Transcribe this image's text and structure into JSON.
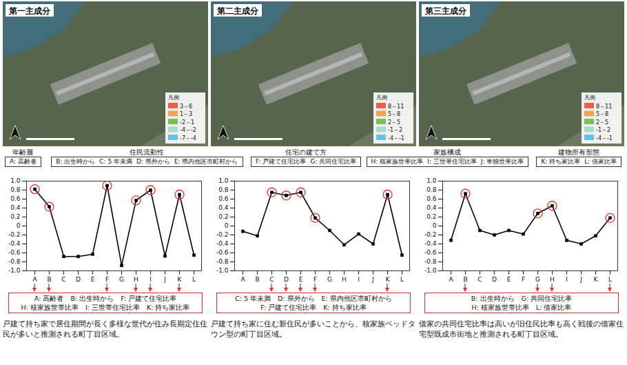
{
  "chart_data": [
    {
      "type": "line",
      "title": "第一主成分",
      "categories": [
        "A",
        "B",
        "C",
        "D",
        "E",
        "F",
        "G",
        "H",
        "I",
        "J",
        "K",
        "L"
      ],
      "values": [
        0.82,
        0.43,
        -0.68,
        -0.68,
        -0.63,
        0.9,
        -0.88,
        0.57,
        0.8,
        -0.67,
        0.7,
        -0.65
      ],
      "color": "#000000",
      "marker": "square",
      "line_style": "solid",
      "ylim": [
        -1,
        1
      ],
      "yticks": [
        {
          "value": -1,
          "label": "-1.0"
        },
        -0.8,
        -0.6,
        -0.4,
        -0.2,
        0,
        0.2,
        0.4,
        0.6,
        0.8,
        {
          "value": 1,
          "label": "1.0"
        }
      ],
      "highlighted": [
        "A",
        "B",
        "F",
        "H",
        "I",
        "K"
      ],
      "annotation_lines": [
        [
          "A: 高齢者",
          "B: 出生時から",
          "F: 戸建て住宅比率"
        ],
        [
          "H: 核家族世帯比率",
          "I: 三世帯住宅比率",
          "K: 持ち家比率"
        ]
      ],
      "caption": "戸建て持ち家で居住期間が長く多様な世代が住み長期定住住民が多いと推測される町丁目区域。",
      "map_legend": {
        "title": "凡例",
        "labels": [
          "3～6",
          "1～3",
          "-2～1",
          "-4～-2",
          "-7～-4"
        ],
        "colors": [
          "#e9604f",
          "#f4a259",
          "#7cbf5a",
          "#a6dcc8",
          "#5fc4e8"
        ]
      }
    },
    {
      "type": "line",
      "title": "第二主成分",
      "categories": [
        "A",
        "B",
        "C",
        "D",
        "E",
        "F",
        "G",
        "H",
        "I",
        "J",
        "K",
        "L"
      ],
      "values": [
        -0.12,
        -0.22,
        0.75,
        0.68,
        0.75,
        0.18,
        -0.1,
        -0.42,
        -0.18,
        -0.4,
        0.7,
        -0.65
      ],
      "color": "#000000",
      "marker": "square",
      "line_style": "solid",
      "ylim": [
        -1,
        1
      ],
      "yticks": [
        {
          "value": -1,
          "label": "-1.0"
        },
        -0.8,
        -0.6,
        -0.4,
        -0.2,
        0,
        0.2,
        0.4,
        0.6,
        0.8,
        {
          "value": 1,
          "label": "1.0"
        }
      ],
      "highlighted": [
        "C",
        "D",
        "E",
        "F",
        "K"
      ],
      "annotation_lines": [
        [
          "C: 5 年未満",
          "D: 県外から",
          "E: 県内他区市町村から"
        ],
        [
          "F: 戸建て住宅比率",
          "K: 持ち家比率"
        ]
      ],
      "caption": "戸建て持ち家に住む新住民が多いことから、核家族ベッドタウン型の町丁目区域。",
      "map_legend": {
        "title": "凡例",
        "labels": [
          "8～11",
          "5～8",
          "2～5",
          "-1～2",
          "-4～-1"
        ],
        "colors": [
          "#e9604f",
          "#f4a259",
          "#7cbf5a",
          "#a6dcc8",
          "#5fc4e8"
        ]
      }
    },
    {
      "type": "line",
      "title": "第三主成分",
      "categories": [
        "A",
        "B",
        "C",
        "D",
        "E",
        "F",
        "G",
        "H",
        "I",
        "J",
        "K",
        "L"
      ],
      "values": [
        -0.32,
        0.72,
        -0.1,
        -0.2,
        -0.1,
        -0.18,
        0.28,
        0.45,
        -0.32,
        -0.4,
        -0.22,
        0.18
      ],
      "color": "#000000",
      "marker": "square",
      "line_style": "solid",
      "ylim": [
        -1,
        1
      ],
      "yticks": [
        {
          "value": -1,
          "label": "-1.0"
        },
        -0.8,
        -0.6,
        -0.4,
        -0.2,
        0,
        0.2,
        0.4,
        0.6,
        0.8,
        {
          "value": 1,
          "label": "1.0"
        }
      ],
      "highlighted": [
        "B",
        "G",
        "H",
        "L"
      ],
      "annotation_lines": [
        [
          "B: 出生時から",
          "G: 共同住宅比率"
        ],
        [
          "H: 核家族世帯比率",
          "L: 借家比率"
        ]
      ],
      "caption": "借家の共同住宅比率は高いが旧住民比率も高く戦後の借家住宅型既成市街地と推測される町丁目区域。",
      "map_legend": {
        "title": "凡例",
        "labels": [
          "8～11",
          "5～8",
          "2～5",
          "-1～2",
          "-4～-1"
        ],
        "colors": [
          "#e9604f",
          "#f4a259",
          "#7cbf5a",
          "#a6dcc8",
          "#5fc4e8"
        ]
      }
    }
  ],
  "variable_groups": [
    {
      "group": "年齢層",
      "items": [
        "A: 高齢者"
      ]
    },
    {
      "group": "住民流動性",
      "items": [
        "B: 出生時から",
        "C: 5 年未満",
        "D: 県外から",
        "E: 県内他区市町村から"
      ]
    },
    {
      "group": "住宅の建て方",
      "items": [
        "F: 戸建て住宅比率",
        "G: 共同住宅比率"
      ]
    },
    {
      "group": "家族構成",
      "items": [
        "H: 核家族世帯比率",
        "I: 三世帯住宅比率",
        "J: 単独世帯比率"
      ]
    },
    {
      "group": "建物所有形態",
      "items": [
        "K: 持ち家比率",
        "L: 借家比率"
      ]
    }
  ]
}
